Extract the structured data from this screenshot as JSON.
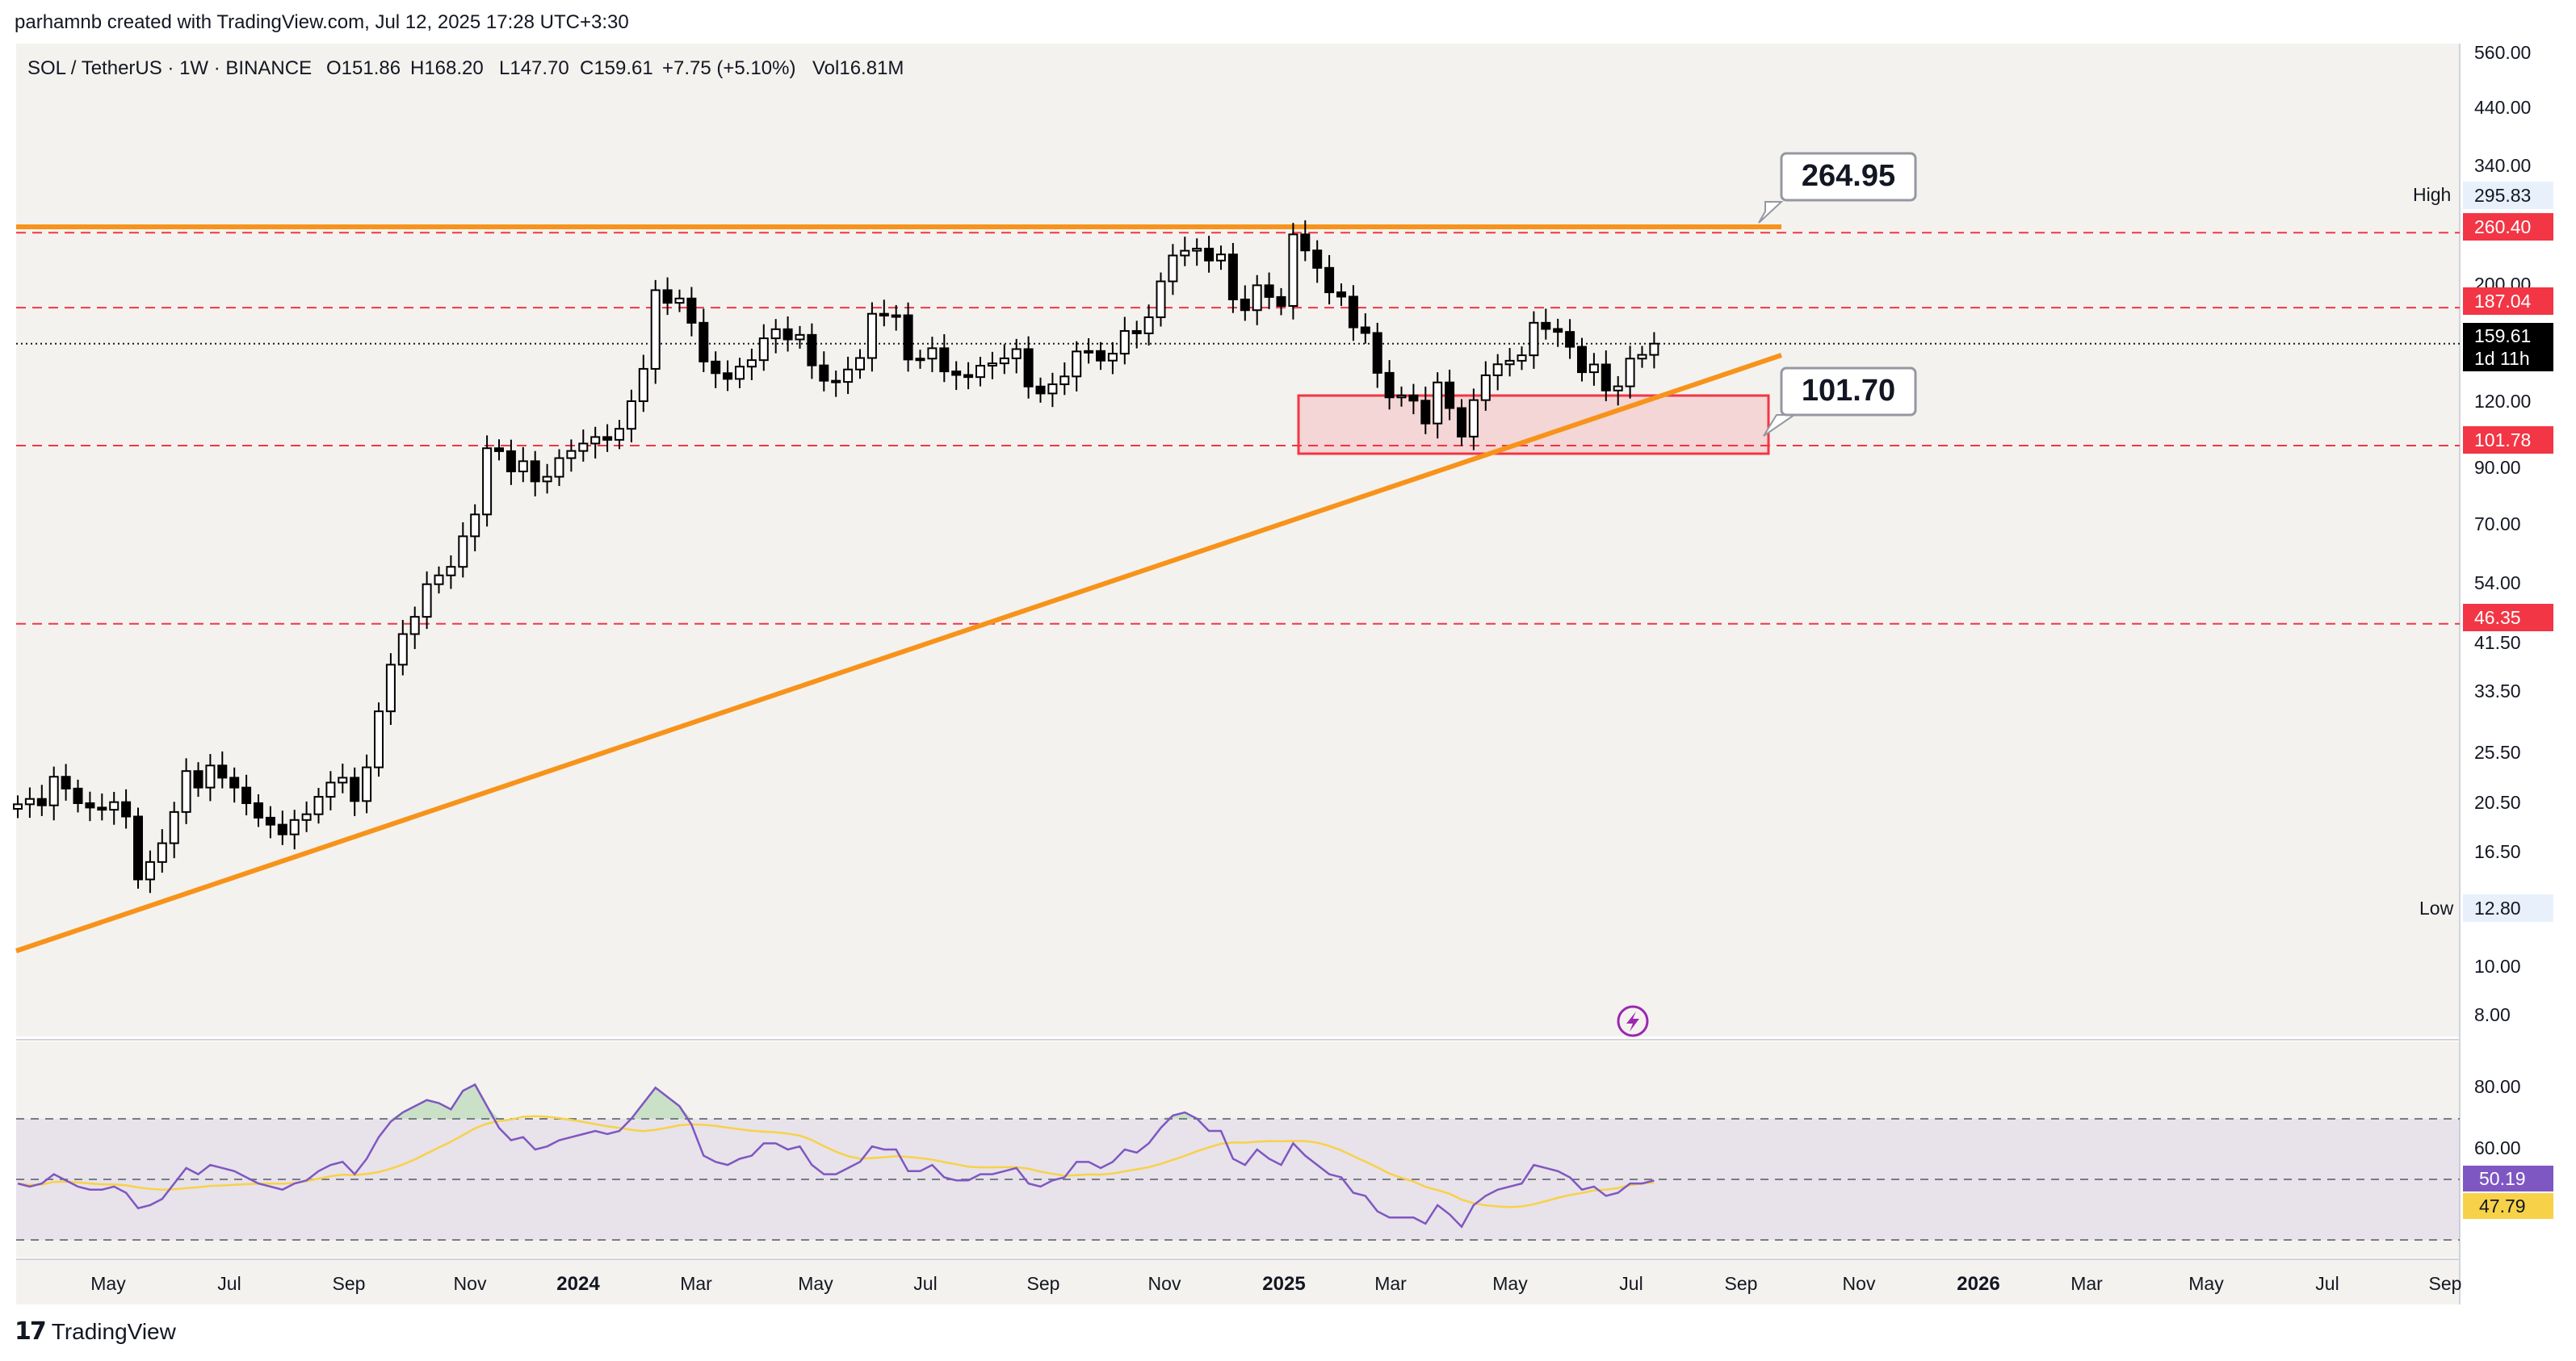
{
  "attribution": "parhamnb created with TradingView.com, Jul 12, 2025 17:28 UTC+3:30",
  "header": {
    "symbol": "SOL / TetherUS · 1W · BINANCE",
    "open": "O151.86",
    "high": "H168.20",
    "low": "L147.70",
    "close": "C159.61",
    "change": "+7.75 (+5.10%)",
    "volume": "Vol16.81M"
  },
  "price_axis_ticks": [
    "560.00",
    "440.00",
    "340.00",
    "200.00",
    "120.00",
    "90.00",
    "70.00",
    "54.00",
    "41.50",
    "33.50",
    "25.50",
    "20.50",
    "16.50",
    "10.00",
    "8.00"
  ],
  "markers": {
    "high_label": "High",
    "high_value": "295.83",
    "low_label": "Low",
    "low_value": "12.80",
    "level_260": "260.40",
    "level_187": "187.04",
    "last_price": "159.61",
    "countdown": "1d 11h",
    "level_101": "101.78",
    "level_46": "46.35"
  },
  "callouts": {
    "top": "264.95",
    "bottom": "101.70"
  },
  "rsi": {
    "ticks": [
      "80.00",
      "60.00"
    ],
    "value": "50.19",
    "ma_value": "47.79"
  },
  "time_axis": [
    "May",
    "Jul",
    "Sep",
    "Nov",
    "2024",
    "Mar",
    "May",
    "Jul",
    "Sep",
    "Nov",
    "2025",
    "Mar",
    "May",
    "Jul",
    "Sep",
    "Nov",
    "2026",
    "Mar",
    "May",
    "Jul",
    "Sep"
  ],
  "footer": {
    "brand": "TradingView"
  },
  "colors": {
    "up": "#ffffff",
    "down": "#000000",
    "orange": "#f7931a",
    "red_level": "#f23645",
    "rsi_line": "#7e57c2",
    "rsi_ma": "#f7d248",
    "pane_bg": "#f4f2ef"
  },
  "chart_data": {
    "type": "candlestick",
    "title": "SOL / TetherUS · 1W · BINANCE",
    "scale": "log",
    "ylim": [
      7.5,
      600
    ],
    "x_start": "2023-04",
    "x_end": "2025-09",
    "horizontal_levels": [
      295.83,
      260.4,
      187.04,
      101.78,
      46.35,
      12.8
    ],
    "resistance_line": 264.95,
    "support_zone": [
      93,
      125
    ],
    "trendline_points": [
      [
        "2023-03",
        10.8
      ],
      [
        "2025-08",
        140
      ]
    ],
    "closes": [
      20.9,
      21.4,
      20.8,
      23.6,
      22.4,
      21.0,
      20.6,
      20.4,
      21.1,
      19.8,
      15.0,
      16.2,
      17.6,
      20.2,
      24.2,
      22.5,
      24.8,
      23.5,
      22.5,
      21.0,
      19.7,
      19.1,
      18.3,
      19.5,
      20.0,
      21.6,
      23.0,
      23.5,
      21.2,
      24.6,
      31.5,
      38.7,
      44.3,
      47.8,
      55.2,
      57.4,
      59.6,
      68.2,
      75.1,
      100.6,
      99.3,
      90.8,
      95.0,
      86.9,
      88.7,
      96.3,
      99.4,
      102.7,
      105.7,
      104.4,
      109.6,
      123.8,
      142.8,
      202.1,
      191.1,
      194.8,
      175.0,
      147.5,
      140.1,
      136.6,
      144.2,
      148.4,
      163.4,
      170.1,
      162.6,
      165.9,
      145.0,
      135.5,
      134.8,
      142.4,
      149.8,
      182.1,
      180.6,
      180.9,
      148.8,
      149.4,
      156.4,
      141.2,
      139.0,
      137.7,
      144.8,
      146.3,
      149.6,
      155.8,
      132.1,
      128.1,
      133.4,
      138.1,
      154.2,
      154.5,
      148.1,
      152.7,
      168.8,
      167.0,
      179.3,
      210.1,
      235.5,
      240.5,
      242.8,
      230.3,
      236.6,
      194.0,
      185.0,
      206.5,
      196.1,
      188.5,
      258.5,
      240.8,
      223.0,
      200.2,
      196.4,
      171.5,
      167.3,
      140.3,
      125.9,
      127.0,
      124.1,
      112.2,
      134.5,
      120.1,
      105.9,
      124.4,
      138.8,
      145.7,
      148.0,
      151.6,
      175.0,
      170.3,
      168.1,
      157.4,
      140.7,
      145.6,
      129.8,
      132.2,
      149.4,
      151.9,
      159.6
    ]
  },
  "rsi_data": {
    "values": [
      49,
      48,
      49,
      52,
      50,
      48,
      47,
      47,
      48,
      46,
      41,
      42,
      44,
      49,
      54,
      52,
      55,
      54,
      53,
      51,
      49,
      48,
      47,
      49,
      50,
      53,
      55,
      56,
      52,
      57,
      64,
      69,
      72,
      74,
      76,
      75,
      73,
      79,
      81,
      74,
      67,
      63,
      64,
      60,
      61,
      63,
      64,
      65,
      66,
      65,
      66,
      70,
      75,
      80,
      77,
      74,
      68,
      58,
      56,
      55,
      57,
      58,
      62,
      62,
      60,
      61,
      55,
      52,
      52,
      54,
      56,
      61,
      60,
      60,
      53,
      53,
      55,
      51,
      50,
      50,
      52,
      52,
      53,
      54,
      49,
      48,
      50,
      51,
      56,
      56,
      54,
      56,
      60,
      59,
      62,
      67,
      71,
      72,
      70,
      66,
      66,
      57,
      55,
      60,
      57,
      55,
      62,
      58,
      55,
      52,
      51,
      46,
      45,
      40,
      38,
      38,
      38,
      36,
      42,
      39,
      35,
      42,
      45,
      47,
      48,
      49,
      55,
      54,
      53,
      51,
      47,
      48,
      45,
      46,
      49,
      49,
      50
    ]
  }
}
